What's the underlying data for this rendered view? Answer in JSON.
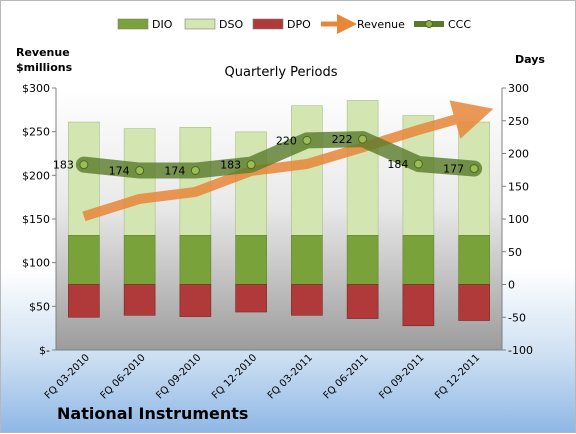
{
  "chart_data": {
    "type": "bar",
    "title": "Quarterly Periods",
    "company": "National Instruments",
    "left_axis_label": [
      "Revenue",
      "$millions"
    ],
    "right_axis_label": "Days",
    "left_ticks": [
      "$300",
      "$250",
      "$200",
      "$150",
      "$100",
      "$50",
      "$-"
    ],
    "right_ticks": [
      "300",
      "250",
      "200",
      "150",
      "100",
      "50",
      "0",
      "-50",
      "-100"
    ],
    "ylim_days": [
      -100,
      300
    ],
    "categories": [
      "FQ 03-2010",
      "FQ 06-2010",
      "FQ 09-2010",
      "FQ 12-2010",
      "FQ 03-2011",
      "FQ 06-2011",
      "FQ 09-2011",
      "FQ 12-2011"
    ],
    "legend": [
      "DIO",
      "DSO",
      "DPO",
      "Revenue",
      "CCC"
    ],
    "series": [
      {
        "name": "DIO",
        "color": "#7aa23a",
        "values": [
          75,
          75,
          75,
          75,
          75,
          75,
          75,
          75
        ]
      },
      {
        "name": "DSO",
        "color": "#d3e5b0",
        "values": [
          173,
          163,
          165,
          158,
          198,
          206,
          183,
          173
        ]
      },
      {
        "name": "DPO",
        "color": "#b03a3a",
        "values": [
          -50,
          -47,
          -49,
          -42,
          -47,
          -52,
          -63,
          -55
        ]
      },
      {
        "name": "Revenue",
        "color": "#e8873a",
        "values": [
          153,
          173,
          181,
          205,
          213,
          232,
          252,
          270
        ]
      },
      {
        "name": "CCC",
        "color": "#5a7a2a",
        "values": [
          183,
          174,
          174,
          183,
          220,
          222,
          184,
          177
        ]
      }
    ],
    "ccc_labels": [
      "183",
      "174",
      "174",
      "183",
      "220",
      "222",
      "184",
      "177"
    ],
    "grid": false
  }
}
